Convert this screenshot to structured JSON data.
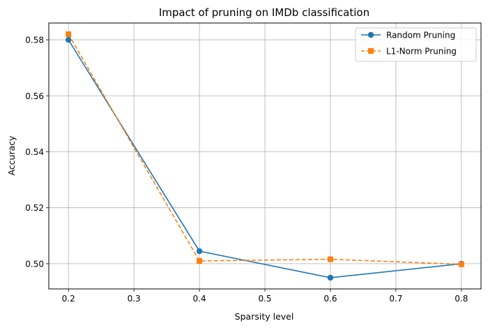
{
  "chart_data": {
    "type": "line",
    "title": "Impact of pruning on IMDb classification",
    "xlabel": "Sparsity level",
    "ylabel": "Accuracy",
    "x": [
      0.2,
      0.4,
      0.6,
      0.8
    ],
    "xticks": [
      "0.2",
      "0.3",
      "0.4",
      "0.5",
      "0.6",
      "0.7",
      "0.8"
    ],
    "yticks": [
      "0.50",
      "0.52",
      "0.54",
      "0.56",
      "0.58"
    ],
    "xlim": [
      0.17,
      0.83
    ],
    "ylim": [
      0.491,
      0.586
    ],
    "grid": true,
    "legend_position": "top-right",
    "series": [
      {
        "name": "Random Pruning",
        "values": [
          0.58,
          0.5045,
          0.495,
          0.5
        ],
        "color": "#1f77b4",
        "marker": "circle",
        "linestyle": "solid"
      },
      {
        "name": "L1-Norm Pruning",
        "values": [
          0.582,
          0.501,
          0.5016,
          0.4998
        ],
        "color": "#ff7f0e",
        "marker": "square",
        "linestyle": "dashed"
      }
    ]
  }
}
